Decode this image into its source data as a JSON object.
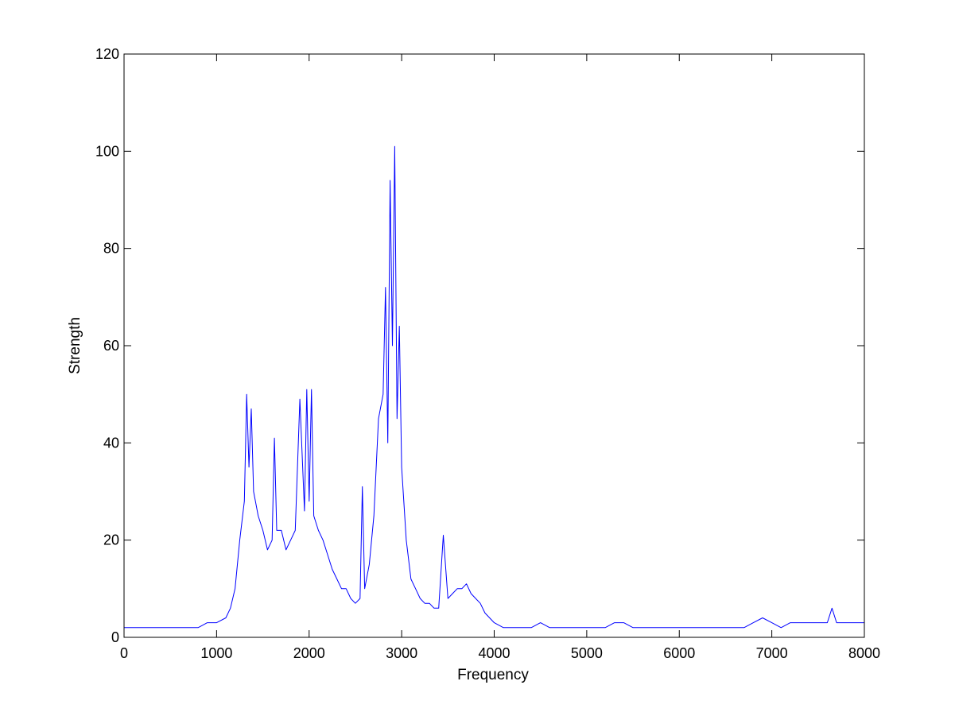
{
  "chart_data": {
    "type": "line",
    "title": "",
    "xlabel": "Frequency",
    "ylabel": "Strength",
    "xlim": [
      0,
      8000
    ],
    "ylim": [
      0,
      120
    ],
    "xticks": [
      0,
      1000,
      2000,
      3000,
      4000,
      5000,
      6000,
      7000,
      8000
    ],
    "yticks": [
      0,
      20,
      40,
      60,
      80,
      100,
      120
    ],
    "xtick_labels": [
      "0",
      "1000",
      "2000",
      "3000",
      "4000",
      "5000",
      "6000",
      "7000",
      "8000"
    ],
    "ytick_labels": [
      "0",
      "20",
      "40",
      "60",
      "80",
      "100",
      "120"
    ],
    "grid": false,
    "series_color": "#0000ff",
    "series": [
      {
        "x": [
          0,
          200,
          400,
          600,
          800,
          900,
          1000,
          1100,
          1150,
          1200,
          1250,
          1300,
          1325,
          1350,
          1375,
          1400,
          1450,
          1500,
          1550,
          1600,
          1625,
          1650,
          1700,
          1750,
          1800,
          1850,
          1900,
          1950,
          1975,
          2000,
          2025,
          2050,
          2100,
          2150,
          2200,
          2250,
          2300,
          2350,
          2400,
          2450,
          2500,
          2550,
          2575,
          2600,
          2650,
          2700,
          2750,
          2800,
          2825,
          2850,
          2875,
          2900,
          2925,
          2950,
          2975,
          3000,
          3050,
          3100,
          3150,
          3200,
          3250,
          3300,
          3350,
          3400,
          3450,
          3500,
          3550,
          3600,
          3650,
          3700,
          3750,
          3800,
          3850,
          3900,
          3950,
          4000,
          4100,
          4200,
          4300,
          4400,
          4500,
          4600,
          4700,
          4800,
          4900,
          5000,
          5100,
          5200,
          5300,
          5400,
          5500,
          5600,
          5700,
          5800,
          5900,
          6000,
          6100,
          6200,
          6300,
          6400,
          6500,
          6600,
          6700,
          6800,
          6900,
          7000,
          7100,
          7200,
          7300,
          7400,
          7500,
          7600,
          7650,
          7700,
          7800,
          7900,
          8000
        ],
        "y": [
          2,
          2,
          2,
          2,
          2,
          3,
          3,
          4,
          6,
          10,
          20,
          28,
          50,
          35,
          47,
          30,
          25,
          22,
          18,
          20,
          41,
          22,
          22,
          18,
          20,
          22,
          49,
          26,
          51,
          28,
          51,
          25,
          22,
          20,
          17,
          14,
          12,
          10,
          10,
          8,
          7,
          8,
          31,
          10,
          15,
          25,
          45,
          50,
          72,
          40,
          94,
          60,
          101,
          45,
          64,
          35,
          20,
          12,
          10,
          8,
          7,
          7,
          6,
          6,
          21,
          8,
          9,
          10,
          10,
          11,
          9,
          8,
          7,
          5,
          4,
          3,
          2,
          2,
          2,
          2,
          3,
          2,
          2,
          2,
          2,
          2,
          2,
          2,
          3,
          3,
          2,
          2,
          2,
          2,
          2,
          2,
          2,
          2,
          2,
          2,
          2,
          2,
          2,
          3,
          4,
          3,
          2,
          3,
          3,
          3,
          3,
          3,
          6,
          3,
          3,
          3,
          3
        ]
      }
    ]
  }
}
